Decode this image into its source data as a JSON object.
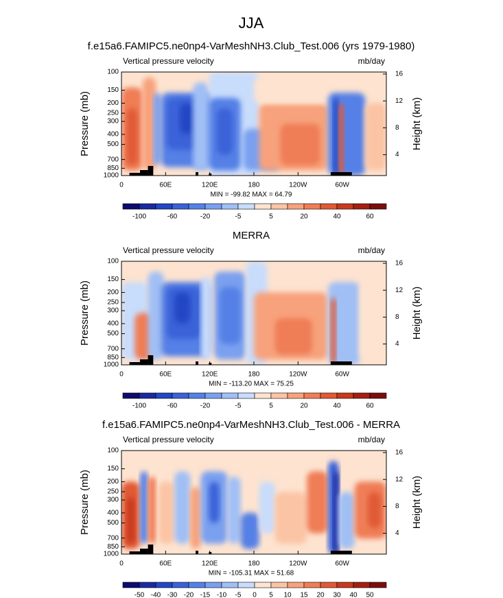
{
  "title": "JJA",
  "chart_data": [
    {
      "type": "contour",
      "title": "f.e15a6.FAMIPC5.ne0np4-VarMeshNH3.Club_Test.006 (yrs 1979-1980)",
      "left_label": "Vertical pressure velocity",
      "right_label": "mb/day",
      "ylabel": "Pressure (mb)",
      "y2label": "Height (km)",
      "log_y": true,
      "ylim": [
        1000,
        100
      ],
      "yticks": [
        100,
        150,
        200,
        250,
        300,
        400,
        500,
        700,
        850,
        1000
      ],
      "y2lim": [
        0.9,
        16.3
      ],
      "y2ticks": [
        4,
        8,
        12,
        16
      ],
      "xlim": [
        0,
        360
      ],
      "xticks": [
        0,
        {
          "value": 60,
          "label": "60E"
        },
        {
          "value": 120,
          "label": "120E"
        },
        180,
        {
          "value": 240,
          "label": "120W"
        },
        {
          "value": 300,
          "label": "60W"
        }
      ],
      "stats": "MIN = -99.82  MAX = 64.79",
      "colorbar_ticks": [
        -100,
        -60,
        -20,
        -5,
        5,
        20,
        40,
        60
      ],
      "colorbar_colors": [
        "#0c0c6e",
        "#1a2a9e",
        "#2346c4",
        "#3a62d8",
        "#5580e6",
        "#7aa0ef",
        "#a0bff5",
        "#c8dcfb",
        "#fde3d0",
        "#fbc4a4",
        "#f7a27c",
        "#ef7d56",
        "#e05a35",
        "#c8381e",
        "#a51e12",
        "#7a0e0c"
      ]
    },
    {
      "type": "contour",
      "title": "MERRA",
      "left_label": "Vertical pressure velocity",
      "right_label": "mb/day",
      "ylabel": "Pressure (mb)",
      "y2label": "Height (km)",
      "log_y": true,
      "ylim": [
        1000,
        100
      ],
      "yticks": [
        100,
        150,
        200,
        250,
        300,
        400,
        500,
        700,
        850,
        1000
      ],
      "y2lim": [
        0.9,
        16.3
      ],
      "y2ticks": [
        4,
        8,
        12,
        16
      ],
      "xlim": [
        0,
        360
      ],
      "xticks": [
        0,
        {
          "value": 60,
          "label": "60E"
        },
        {
          "value": 120,
          "label": "120E"
        },
        180,
        {
          "value": 240,
          "label": "120W"
        },
        {
          "value": 300,
          "label": "60W"
        }
      ],
      "stats": "MIN = -113.20  MAX = 75.25",
      "colorbar_ticks": [
        -100,
        -60,
        -20,
        -5,
        5,
        20,
        40,
        60
      ],
      "colorbar_colors": [
        "#0c0c6e",
        "#1a2a9e",
        "#2346c4",
        "#3a62d8",
        "#5580e6",
        "#7aa0ef",
        "#a0bff5",
        "#c8dcfb",
        "#fde3d0",
        "#fbc4a4",
        "#f7a27c",
        "#ef7d56",
        "#e05a35",
        "#c8381e",
        "#a51e12",
        "#7a0e0c"
      ]
    },
    {
      "type": "contour",
      "title": "f.e15a6.FAMIPC5.ne0np4-VarMeshNH3.Club_Test.006 - MERRA",
      "left_label": "Vertical pressure velocity",
      "right_label": "mb/day",
      "ylabel": "Pressure (mb)",
      "y2label": "Height (km)",
      "log_y": true,
      "ylim": [
        1000,
        100
      ],
      "yticks": [
        100,
        150,
        200,
        250,
        300,
        400,
        500,
        700,
        850,
        1000
      ],
      "y2lim": [
        0.9,
        16.3
      ],
      "y2ticks": [
        4,
        8,
        12,
        16
      ],
      "xlim": [
        0,
        360
      ],
      "xticks": [
        0,
        {
          "value": 60,
          "label": "60E"
        },
        {
          "value": 120,
          "label": "120E"
        },
        180,
        {
          "value": 240,
          "label": "120W"
        },
        {
          "value": 300,
          "label": "60W"
        }
      ],
      "stats": "MIN = -105.31  MAX = 51.68",
      "colorbar_ticks": [
        -50,
        -40,
        -30,
        -20,
        -15,
        -10,
        -5,
        0,
        5,
        10,
        15,
        20,
        30,
        40,
        50
      ],
      "colorbar_colors": [
        "#0c0c6e",
        "#1a2a9e",
        "#2346c4",
        "#3a62d8",
        "#5580e6",
        "#7aa0ef",
        "#a0bff5",
        "#c8dcfb",
        "#fde3d0",
        "#fbc4a4",
        "#f7a27c",
        "#ef7d56",
        "#e05a35",
        "#c8381e",
        "#a51e12",
        "#7a0e0c"
      ]
    }
  ]
}
